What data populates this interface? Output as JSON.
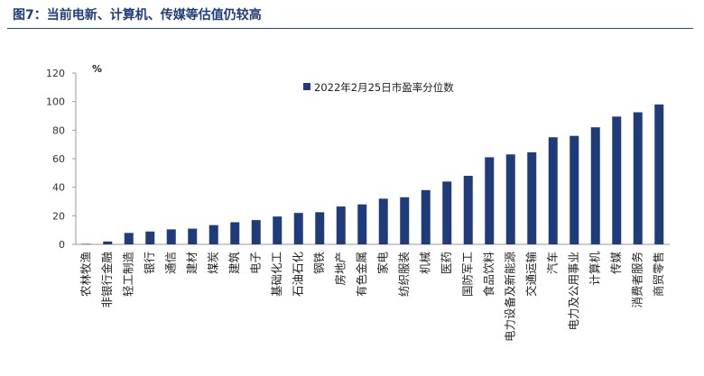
{
  "figure_title": "图7：当前电新、计算机、传媒等估值仍较高",
  "footer_note": "",
  "chart_data": {
    "type": "bar",
    "title": "",
    "xlabel": "",
    "ylabel": "%",
    "ylim": [
      0,
      120
    ],
    "yticks": [
      0,
      20,
      40,
      60,
      80,
      100,
      120
    ],
    "grid": false,
    "legend_position": "top-right",
    "bar_color": "#1f3b7a",
    "series": [
      {
        "name": "2022年2月25日市盈率分位数",
        "values": [
          0.3,
          2,
          8,
          9,
          10.5,
          11,
          13.5,
          15.5,
          17,
          19.5,
          22,
          22.5,
          26.5,
          28,
          32,
          33,
          38,
          44,
          48,
          61,
          63,
          64.5,
          75,
          76,
          82,
          89.5,
          92.5,
          98
        ]
      }
    ],
    "categories": [
      "农林牧渔",
      "非银行金融",
      "轻工制造",
      "银行",
      "通信",
      "建材",
      "煤炭",
      "建筑",
      "电子",
      "基础化工",
      "石油石化",
      "钢铁",
      "房地产",
      "有色金属",
      "家电",
      "纺织服装",
      "机械",
      "医药",
      "国防军工",
      "食品饮料",
      "电力设备及新能源",
      "交通运输",
      "汽车",
      "电力及公用事业",
      "计算机",
      "传媒",
      "消费者服务",
      "商贸零售"
    ]
  }
}
